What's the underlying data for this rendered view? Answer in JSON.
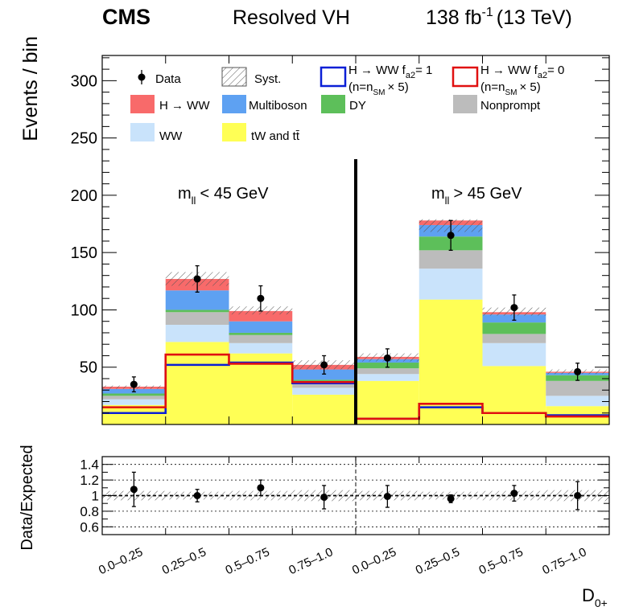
{
  "header": {
    "experiment": "CMS",
    "analysis": "Resolved VH",
    "lumi_value": "138 fb",
    "lumi_exp": "-1",
    "energy": "(13 TeV)"
  },
  "colors": {
    "hww": "#f86a6a",
    "multiboson": "#5ea1f2",
    "dy": "#5dbf5a",
    "nonprompt": "#bcbcbc",
    "ww": "#c9e3fb",
    "top": "#ffff55",
    "line_fa2_1": "#0a1fd6",
    "line_fa2_0": "#e01010"
  },
  "legend": {
    "data": "Data",
    "syst": "Syst.",
    "fa2_1_main": "H → WW f",
    "fa2_1_sub": "a2",
    "fa2_1_val": "= 1",
    "fa2_0_main": "H → WW f",
    "fa2_0_sub": "a2",
    "fa2_0_val": "= 0",
    "scale_pre": "(n=n",
    "scale_sub": "SM",
    "scale_post": "× 5)",
    "hww": "H → WW",
    "multiboson": "Multiboson",
    "dy": "DY",
    "nonprompt": "Nonprompt",
    "ww": "WW",
    "top": "tW and tt̄"
  },
  "regions": {
    "low_main": "m",
    "low_sub": "ll",
    "low_cut": "< 45 GeV",
    "high_main": "m",
    "high_sub": "ll",
    "high_cut": "> 45 GeV"
  },
  "chart_data": [
    {
      "type": "bar",
      "stacked": true,
      "title": "Resolved VH",
      "ylabel": "Events / bin",
      "ylim": [
        0,
        322
      ],
      "yticks": [
        50,
        100,
        150,
        200,
        250,
        300
      ],
      "xlabel": "D",
      "xlabel_sub": "0+",
      "categories": [
        "0.0–0.25",
        "0.25–0.5",
        "0.5–0.75",
        "0.75–1.0",
        "0.0–0.25",
        "0.25–0.5",
        "0.5–0.75",
        "0.75–1.0"
      ],
      "series": [
        {
          "name": "tW and tt̄",
          "key": "top",
          "values": [
            17,
            72,
            62,
            26,
            38,
            109,
            51,
            16
          ]
        },
        {
          "name": "WW",
          "key": "ww",
          "values": [
            5,
            15,
            9,
            6,
            6,
            27,
            20,
            9
          ]
        },
        {
          "name": "Nonprompt",
          "key": "nonprompt",
          "values": [
            3,
            11,
            7,
            5,
            5,
            16,
            8,
            13
          ]
        },
        {
          "name": "DY",
          "key": "dy",
          "values": [
            2,
            2,
            2,
            2,
            5,
            12,
            10,
            5
          ]
        },
        {
          "name": "Multiboson",
          "key": "multiboson",
          "values": [
            4,
            17,
            10,
            9,
            3,
            10,
            7,
            2
          ]
        },
        {
          "name": "H → WW",
          "key": "hww",
          "values": [
            2,
            10,
            9,
            4,
            2,
            4,
            2,
            1
          ]
        }
      ],
      "lines": [
        {
          "name": "H → WW fa2 = 1 (n=nSM × 5)",
          "key": "line_fa2_1",
          "values": [
            10,
            52,
            54,
            36,
            5,
            15,
            10,
            8
          ]
        },
        {
          "name": "H → WW fa2 = 0 (n=nSM × 5)",
          "key": "line_fa2_0",
          "values": [
            15,
            61,
            53,
            37,
            5,
            18,
            10,
            7
          ]
        }
      ],
      "syst_upper": [
        34,
        133,
        103,
        56,
        62,
        179,
        102,
        48
      ],
      "syst_lower": [
        31,
        121,
        96,
        48,
        55,
        168,
        95,
        44
      ],
      "data": {
        "values": [
          35,
          127,
          110,
          52,
          58,
          165,
          102,
          46
        ],
        "errors": [
          6.5,
          11.5,
          11,
          8,
          8,
          13,
          11,
          7.5
        ]
      },
      "divider_after_bin": 4
    },
    {
      "type": "scatter",
      "ylabel": "Data/Expected",
      "ylim": [
        0.5,
        1.5
      ],
      "yticks": [
        0.6,
        0.8,
        1,
        1.2,
        1.4
      ],
      "ytick_labels": [
        "0.6",
        "0.8",
        "1",
        "1.2",
        "1.4"
      ],
      "grid": true,
      "values": [
        1.08,
        1.0,
        1.1,
        0.98,
        0.99,
        0.96,
        1.03,
        1.0
      ],
      "errors": [
        0.22,
        0.08,
        0.1,
        0.15,
        0.14,
        0.05,
        0.1,
        0.18
      ],
      "band_half_width": [
        0.06,
        0.05,
        0.06,
        0.07,
        0.06,
        0.05,
        0.06,
        0.07
      ]
    }
  ]
}
